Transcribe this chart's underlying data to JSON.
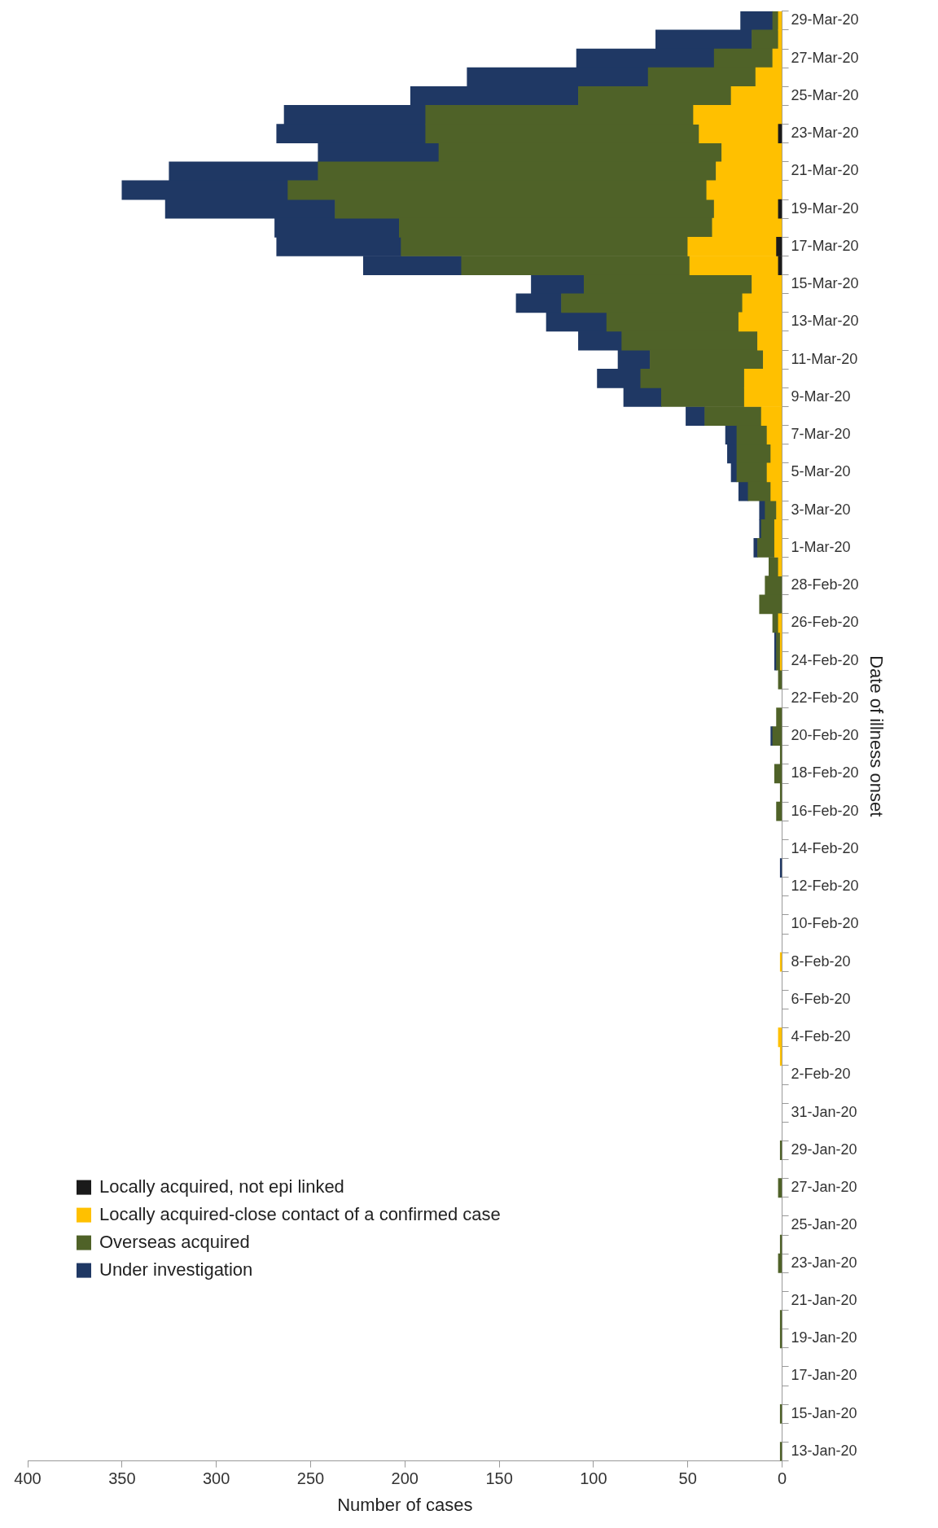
{
  "chart_data": {
    "type": "bar",
    "orientation": "horizontal",
    "stacked": true,
    "xlabel": "Number of cases",
    "ylabel": "Date of illness onset",
    "categories": [
      "29-Mar-20",
      null,
      "27-Mar-20",
      null,
      "25-Mar-20",
      null,
      "23-Mar-20",
      null,
      "21-Mar-20",
      null,
      "19-Mar-20",
      null,
      "17-Mar-20",
      null,
      "15-Mar-20",
      null,
      "13-Mar-20",
      null,
      "11-Mar-20",
      null,
      "9-Mar-20",
      null,
      "7-Mar-20",
      null,
      "5-Mar-20",
      null,
      "3-Mar-20",
      null,
      "1-Mar-20",
      null,
      "28-Feb-20",
      null,
      "26-Feb-20",
      null,
      "24-Feb-20",
      null,
      "22-Feb-20",
      null,
      "20-Feb-20",
      null,
      "18-Feb-20",
      null,
      "16-Feb-20",
      null,
      "14-Feb-20",
      null,
      "12-Feb-20",
      null,
      "10-Feb-20",
      null,
      "8-Feb-20",
      null,
      "6-Feb-20",
      null,
      "4-Feb-20",
      null,
      "2-Feb-20",
      null,
      "31-Jan-20",
      null,
      "29-Jan-20",
      null,
      "27-Jan-20",
      null,
      "25-Jan-20",
      null,
      "23-Jan-20",
      null,
      "21-Jan-20",
      null,
      "19-Jan-20",
      null,
      "17-Jan-20",
      null,
      "15-Jan-20",
      null,
      "13-Jan-20"
    ],
    "series": [
      {
        "name": "Locally acquired, not epi linked",
        "color": "#1a1a1a",
        "values": [
          0,
          0,
          0,
          0,
          0,
          0,
          2,
          0,
          0,
          0,
          2,
          0,
          3,
          2,
          0,
          0,
          0,
          0,
          0,
          0,
          0,
          0,
          0,
          0,
          0,
          0,
          0,
          0,
          0,
          0,
          0,
          0,
          0,
          0,
          0,
          0,
          0,
          0,
          0,
          0,
          0,
          0,
          0,
          0,
          0,
          0,
          0,
          0,
          0,
          0,
          0,
          0,
          0,
          0,
          0,
          0,
          0,
          0,
          0,
          0,
          0,
          0,
          0,
          0,
          0,
          0,
          0,
          0,
          0,
          0,
          0,
          0,
          0,
          0,
          0,
          0,
          0
        ]
      },
      {
        "name": "Locally acquired-close contact of a confirmed case",
        "color": "#ffc000",
        "values": [
          2,
          2,
          5,
          14,
          27,
          47,
          42,
          32,
          35,
          40,
          34,
          37,
          47,
          47,
          16,
          21,
          23,
          13,
          10,
          20,
          20,
          11,
          8,
          6,
          8,
          6,
          3,
          4,
          4,
          2,
          0,
          0,
          2,
          1,
          1,
          0,
          0,
          0,
          0,
          0,
          0,
          0,
          0,
          0,
          0,
          0,
          0,
          0,
          0,
          0,
          1,
          0,
          0,
          0,
          2,
          1,
          0,
          0,
          0,
          0,
          0,
          0,
          0,
          0,
          0,
          0,
          0,
          0,
          0,
          0,
          0,
          0,
          0,
          0,
          0,
          0,
          0
        ]
      },
      {
        "name": "Overseas acquired",
        "color": "#4f6228",
        "values": [
          3,
          14,
          31,
          57,
          81,
          142,
          145,
          150,
          211,
          222,
          201,
          166,
          152,
          121,
          89,
          96,
          70,
          72,
          60,
          55,
          44,
          30,
          16,
          18,
          16,
          12,
          6,
          7,
          9,
          5,
          9,
          12,
          3,
          2,
          2,
          2,
          0,
          3,
          5,
          1,
          4,
          1,
          3,
          0,
          0,
          0,
          0,
          0,
          0,
          0,
          0,
          0,
          0,
          0,
          0,
          0,
          0,
          0,
          0,
          0,
          1,
          0,
          2,
          0,
          0,
          1,
          2,
          0,
          0,
          1,
          1,
          0,
          0,
          0,
          1,
          0,
          1
        ]
      },
      {
        "name": "Under investigation",
        "color": "#1f3864",
        "values": [
          17,
          51,
          73,
          96,
          89,
          75,
          79,
          64,
          79,
          88,
          90,
          66,
          66,
          52,
          28,
          24,
          32,
          23,
          17,
          23,
          20,
          10,
          6,
          5,
          3,
          5,
          3,
          1,
          2,
          0,
          0,
          0,
          0,
          1,
          1,
          0,
          0,
          0,
          1,
          0,
          0,
          0,
          0,
          0,
          0,
          1,
          0,
          0,
          0,
          0,
          0,
          0,
          0,
          0,
          0,
          0,
          0,
          0,
          0,
          0,
          0,
          0,
          0,
          0,
          0,
          0,
          0,
          0,
          0,
          0,
          0,
          0,
          0,
          0,
          0,
          0,
          0
        ]
      }
    ],
    "xlim": [
      400,
      0
    ],
    "xticks": [
      0,
      50,
      100,
      150,
      200,
      250,
      300,
      350,
      400
    ],
    "legend": "bottom left"
  }
}
